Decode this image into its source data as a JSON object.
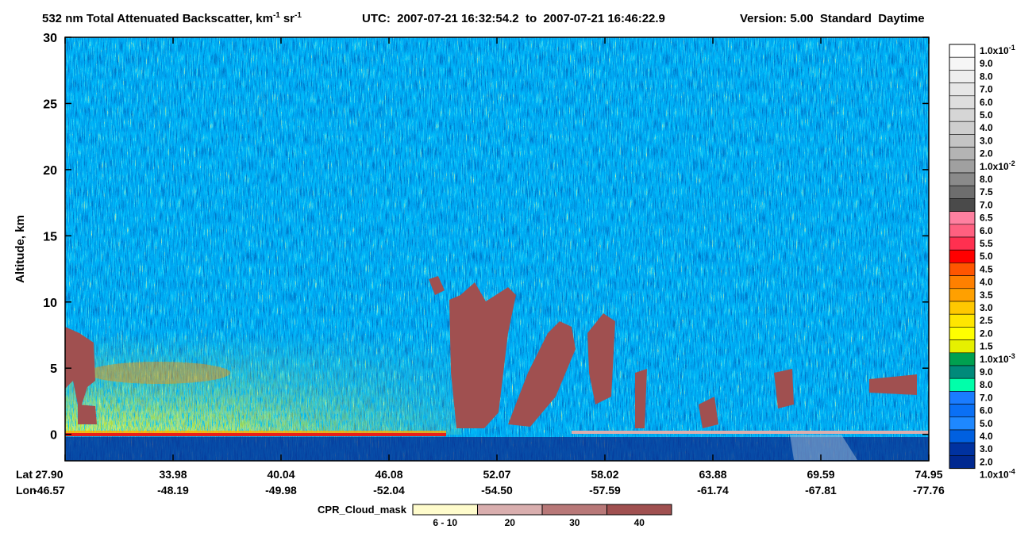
{
  "chart_data": {
    "type": "curtain",
    "title": {
      "part_1": "532 nm Total Attenuated Backscatter, km",
      "sup_1": "-1",
      "part_2": "sr",
      "sup_2": "-1",
      "part_3": "UTC:  2007-07-21 16:32:54.2  to  2007-07-21 16:46:22.9",
      "part_4": "Version: 5.00  Standard  Daytime"
    },
    "y_label": "Altitude, km",
    "ylim": [
      -2,
      30
    ],
    "yticks": [
      0,
      5,
      10,
      15,
      20,
      25,
      30
    ],
    "x_rows": {
      "lat_label": "Lat",
      "lon_label": "Lon",
      "lat": [
        "27.90",
        "33.98",
        "40.04",
        "46.08",
        "52.07",
        "58.02",
        "63.88",
        "69.59",
        "74.95"
      ],
      "lon": [
        "-46.57",
        "-48.19",
        "-49.98",
        "-52.04",
        "-54.50",
        "-57.59",
        "-61.74",
        "-67.81",
        "-77.76"
      ]
    },
    "colorbar": {
      "labels": [
        {
          "text": "1.0x10",
          "sup": "-1"
        },
        "9.0",
        "8.0",
        "7.0",
        "6.0",
        "5.0",
        "4.0",
        "3.0",
        "2.0",
        {
          "text": "1.0x10",
          "sup": "-2"
        },
        "8.0",
        "7.5",
        "7.0",
        "6.5",
        "6.0",
        "5.5",
        "5.0",
        "4.5",
        "4.0",
        "3.5",
        "3.0",
        "2.5",
        "2.0",
        "1.5",
        {
          "text": "1.0x10",
          "sup": "-3"
        },
        "9.0",
        "8.0",
        "7.0",
        "6.0",
        "5.0",
        "4.0",
        "3.0",
        "2.0",
        {
          "text": "1.0x10",
          "sup": "-4"
        }
      ],
      "colors": [
        "#ffffff",
        "#f6f6f6",
        "#eeeeee",
        "#e6e6e6",
        "#dedede",
        "#d6d6d6",
        "#cecece",
        "#c4c4c4",
        "#b4b4b4",
        "#a0a0a0",
        "#8a8a8a",
        "#6e6e6e",
        "#4a4a4a",
        "#ff80a0",
        "#ff6080",
        "#ff3050",
        "#ff0000",
        "#ff5500",
        "#ff8000",
        "#ffa000",
        "#ffc800",
        "#ffe600",
        "#ffff00",
        "#e6f000",
        "#00a050",
        "#008a7a",
        "#00ffaa",
        "#1a7cff",
        "#0a70f5",
        "#1e88ff",
        "#0060e0",
        "#0032a0",
        "#002890"
      ]
    },
    "cloud_mask": {
      "title": "CPR_Cloud_mask",
      "labels": [
        "6 - 10",
        "20",
        "30",
        "40"
      ],
      "colors": [
        "#fffccc",
        "#d9aeae",
        "#b87878",
        "#a05050"
      ]
    }
  }
}
